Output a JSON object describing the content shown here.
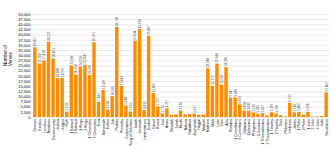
{
  "chart_data": {
    "type": "bar",
    "ylabel": "Number of\nVerses",
    "categories": [
      "Genesis",
      "Exodus",
      "Leviticus",
      "Numbers",
      "Deuteronomy",
      "Joshua",
      "Judges",
      "Ruth",
      "1 Samuel",
      "2 Samuel",
      "1 Kings",
      "2 Kings",
      "1 Chronicles",
      "2 Chronicles",
      "Ezra",
      "Nehemiah",
      "Esther",
      "Job",
      "Psalms",
      "Proverbs",
      "Ecclesiastes",
      "Song of Solomon",
      "Isaiah",
      "Jeremiah",
      "Lamentations",
      "Ezekiel",
      "Daniel",
      "Hosea",
      "Joel",
      "Amos",
      "Obadiah",
      "Jonah",
      "Micah",
      "Nahum",
      "Habakkuk",
      "Zephaniah",
      "Haggai",
      "Malachi",
      "Matthew",
      "Mark",
      "Luke",
      "John",
      "Acts",
      "Romans",
      "1 Corinthians",
      "2 Corinthians",
      "Galatians",
      "Ephesians",
      "Philippians",
      "Colossians",
      "1 Thessalonians",
      "2 Thessalonians",
      "1 Timothy",
      "2 Timothy",
      "Titus",
      "Philemon",
      "Hebrews",
      "James",
      "1 Peter",
      "2 Peter",
      "1 John",
      "2 John",
      "3 John",
      "Jude",
      "Revelation"
    ],
    "values": [
      33857,
      25958,
      27478,
      36525,
      28461,
      18858,
      18976,
      2578,
      25046,
      20614,
      24524,
      25368,
      20370,
      36291,
      7441,
      13109,
      3624,
      10102,
      43743,
      15043,
      5584,
      2661,
      37044,
      42654,
      3415,
      39407,
      11606,
      5175,
      1755,
      4217,
      1070,
      1321,
      3153,
      1285,
      1476,
      1617,
      1130,
      1189,
      23684,
      15171,
      25944,
      15635,
      24250,
      9447,
      9489,
      6092,
      3098,
      3039,
      2192,
      1582,
      1857,
      823,
      2269,
      1703,
      921,
      335,
      6912,
      2183,
      2482,
      1099,
      2520,
      245,
      294,
      461,
      12002
    ],
    "value_labels": [
      "33,857",
      "25,958",
      "27,478",
      "36,525",
      "28,461",
      "18,858",
      "18,976",
      "2,578",
      "25,046",
      "20,614",
      "24,524",
      "25,368",
      "20,370",
      "36,291",
      "7,441",
      "13,109",
      "3,624",
      "10,102",
      "43,743",
      "15,043",
      "5,584",
      "2,661",
      "37,044",
      "42,654",
      "3,415",
      "39,407",
      "11,606",
      "5,175",
      "1,755",
      "4,217",
      null,
      null,
      "3,153",
      null,
      null,
      "1,617",
      null,
      null,
      "23,684",
      "15,171",
      "25,944",
      "15,635",
      "24,250",
      "9,447",
      "9,489",
      "6,092",
      "3,098",
      "3,039",
      "2,192",
      "1,582",
      "1,857",
      null,
      "2,269",
      "1,703",
      null,
      null,
      "6,912",
      "2,183",
      "2,482",
      null,
      "2,520",
      null,
      null,
      null,
      "12,002"
    ],
    "data_labels": true,
    "color": "#FF8C00",
    "ylim": [
      0,
      50000
    ],
    "yticks": [
      0,
      {
        "value": 2500,
        "label": "2,500"
      },
      {
        "value": 5000,
        "label": "5,000"
      },
      {
        "value": 7500,
        "label": "7,500"
      },
      {
        "value": 10000,
        "label": "10,000"
      },
      {
        "value": 12500,
        "label": "12,500"
      },
      {
        "value": 15000,
        "label": "15,000"
      },
      {
        "value": 17500,
        "label": "17,500"
      },
      {
        "value": 20000,
        "label": "20,000"
      },
      {
        "value": 22500,
        "label": "22,500"
      },
      {
        "value": 25000,
        "label": "25,000"
      },
      {
        "value": 27500,
        "label": "27,500"
      },
      {
        "value": 30000,
        "label": "30,000"
      },
      {
        "value": 32500,
        "label": "32,500"
      },
      {
        "value": 35000,
        "label": "35,000"
      },
      {
        "value": 37500,
        "label": "37,500"
      },
      {
        "value": 40000,
        "label": "40,000"
      },
      {
        "value": 42500,
        "label": "42,500"
      },
      {
        "value": 45000,
        "label": "45,000"
      },
      {
        "value": 47500,
        "label": "47,500"
      },
      {
        "value": 50000,
        "label": "50,000"
      }
    ],
    "grid": true
  }
}
